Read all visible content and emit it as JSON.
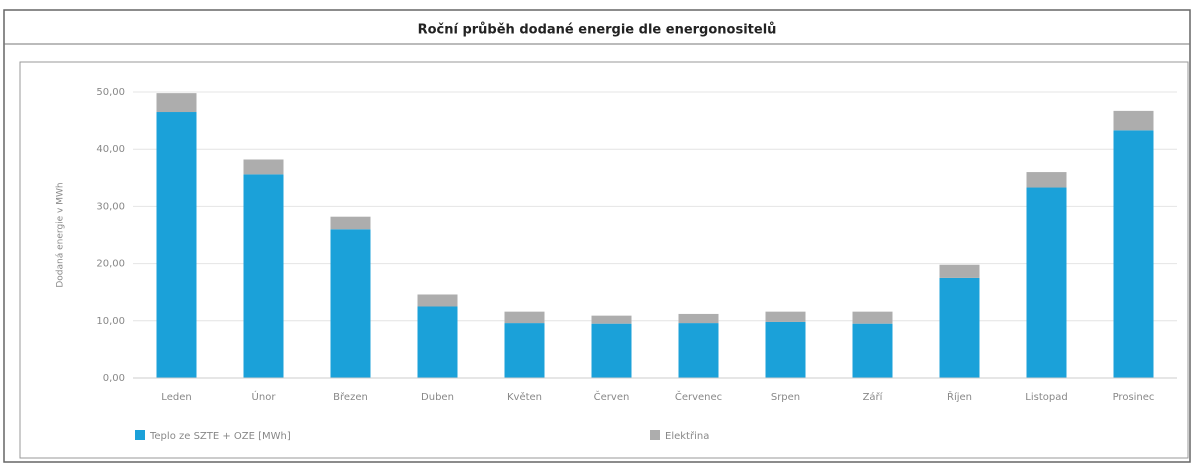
{
  "chart_data": {
    "type": "stacked-bar",
    "title": "Roční průběh dodané energie dle energonositelů",
    "y_label": "Dodaná energie v MWh",
    "categories": [
      "Leden",
      "Únor",
      "Březen",
      "Duben",
      "Květen",
      "Červen",
      "Červenec",
      "Srpen",
      "Září",
      "Říjen",
      "Listopad",
      "Prosinec"
    ],
    "series": [
      {
        "name": "Teplo ze SZTE + OZE [MWh]",
        "color": "#1ba1d9",
        "values": [
          46.5,
          35.6,
          26.0,
          12.5,
          9.6,
          9.5,
          9.6,
          9.8,
          9.5,
          17.5,
          33.3,
          43.3
        ]
      },
      {
        "name": "Elektřina",
        "color": "#adadad",
        "values": [
          3.3,
          2.6,
          2.2,
          2.1,
          2.0,
          1.4,
          1.6,
          1.8,
          2.1,
          2.3,
          2.7,
          3.4
        ]
      }
    ],
    "ylim": [
      0,
      50
    ],
    "yticks": [
      {
        "value": 0,
        "label": "0,00"
      },
      {
        "value": 10,
        "label": "10,00"
      },
      {
        "value": 20,
        "label": "20,00"
      },
      {
        "value": 30,
        "label": "30,00"
      },
      {
        "value": 40,
        "label": "40,00"
      },
      {
        "value": 50,
        "label": "50,00"
      }
    ],
    "grid": true
  }
}
